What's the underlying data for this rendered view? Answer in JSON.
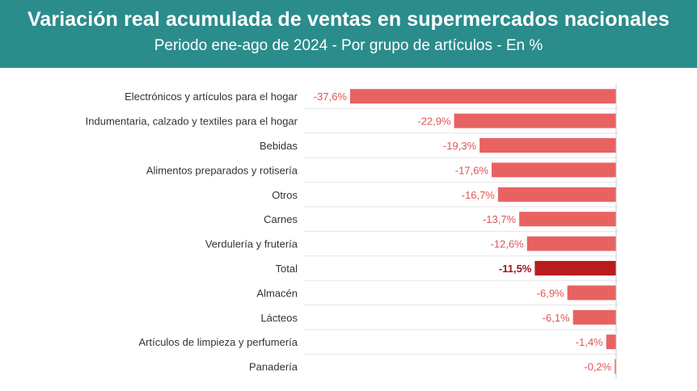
{
  "header": {
    "title": "Variación real acumulada de ventas en supermercados nacionales",
    "subtitle": "Periodo ene-ago de 2024 - Por grupo de artículos - En %"
  },
  "colors": {
    "header_bg": "#2b8c8c",
    "bar": "#e86262",
    "bar_highlight": "#b81c1c",
    "label": "#e05555",
    "label_highlight": "#a01414"
  },
  "chart_data": {
    "type": "bar",
    "orientation": "horizontal",
    "categories": [
      "Electrónicos y artículos para el hogar",
      "Indumentaria, calzado y textiles para el hogar",
      "Bebidas",
      "Alimentos preparados y rotisería",
      "Otros",
      "Carnes",
      "Verdulería y frutería",
      "Total",
      "Almacén",
      "Lácteos",
      "Artículos de limpieza y perfumería",
      "Panadería"
    ],
    "values": [
      -37.6,
      -22.9,
      -19.3,
      -17.6,
      -16.7,
      -13.7,
      -12.6,
      -11.5,
      -6.9,
      -6.1,
      -1.4,
      -0.2
    ],
    "value_labels": [
      "-37,6%",
      "-22,9%",
      "-19,3%",
      "-17,6%",
      "-16,7%",
      "-13,7%",
      "-12,6%",
      "-11,5%",
      "-6,9%",
      "-6,1%",
      "-1,4%",
      "-0,2%"
    ],
    "highlight": "Total",
    "unit": "%",
    "xlim": [
      -37.6,
      0
    ],
    "grid": "horizontal row separators"
  }
}
